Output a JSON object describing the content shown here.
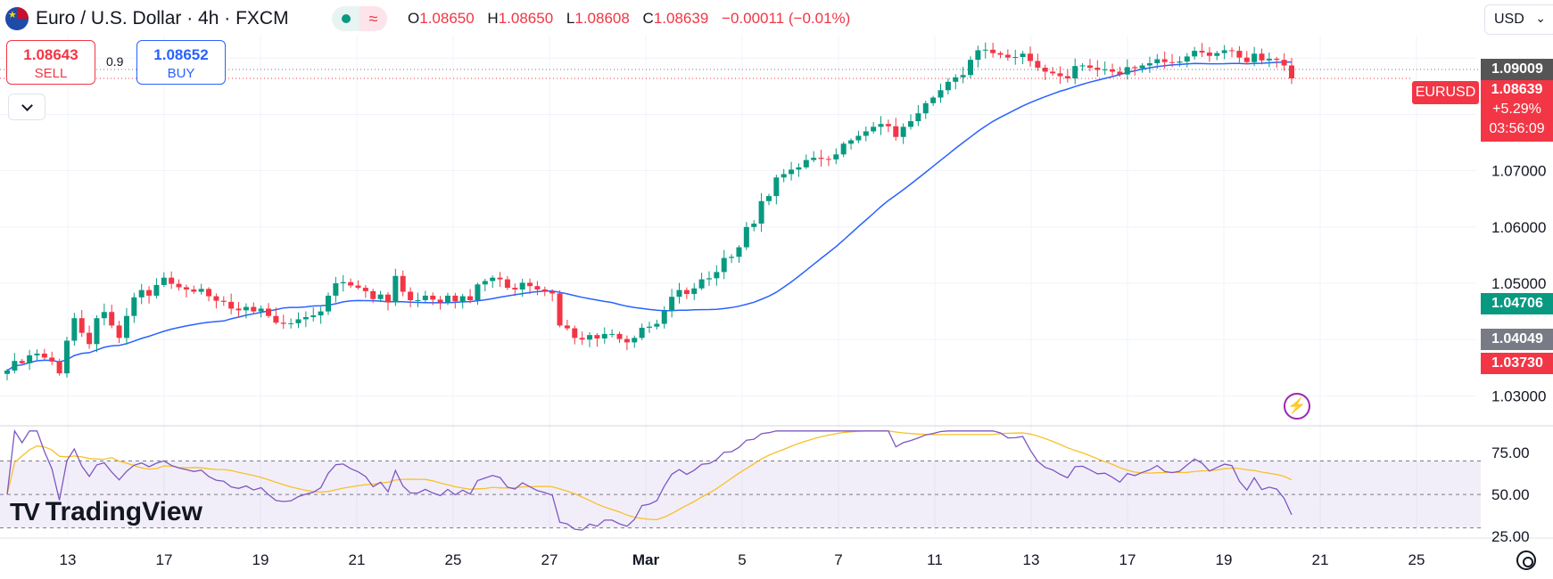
{
  "header": {
    "title": "Euro / U.S. Dollar · 4h · FXCM",
    "ohlc": [
      {
        "key": "O",
        "value": "1.08650"
      },
      {
        "key": "H",
        "value": "1.08650"
      },
      {
        "key": "L",
        "value": "1.08608"
      },
      {
        "key": "C",
        "value": "1.08639"
      },
      {
        "key": "",
        "value": "−0.00011 (−0.01%)"
      }
    ],
    "currency": "USD",
    "currency_icon": "chevron-down-icon"
  },
  "trade": {
    "sell_price": "1.08643",
    "sell_label": "SELL",
    "buy_price": "1.08652",
    "buy_label": "BUY",
    "spread": "0.9"
  },
  "price_scale": {
    "ticks": [
      "1.07000",
      "1.06000",
      "1.05000",
      "1.03000"
    ],
    "labels": [
      {
        "text": "1.09009",
        "color": "#555555"
      },
      {
        "text": "1.04706",
        "color": "#089981"
      },
      {
        "text": "1.04049",
        "color": "#787b86"
      },
      {
        "text": "1.03730",
        "color": "#f23645"
      }
    ],
    "symbol_tag": "EURUSD",
    "last_price": "1.08639",
    "change_pct": "+5.29%",
    "countdown": "03:56:09"
  },
  "rsi_scale": {
    "ticks": [
      "75.00",
      "50.00",
      "25.00"
    ]
  },
  "time_axis": {
    "ticks": [
      "13",
      "17",
      "19",
      "21",
      "25",
      "27",
      "Mar",
      "5",
      "7",
      "11",
      "13",
      "17",
      "19",
      "21",
      "25"
    ]
  },
  "branding": {
    "logo_text": "TradingView",
    "logo_mark": "17"
  },
  "colors": {
    "up": "#089981",
    "down": "#f23645",
    "ma": "#2962ff",
    "rsi": "#7e57c2",
    "rsi_ma": "#f7c02a"
  },
  "chart_data": {
    "type": "candlestick",
    "symbol": "EURUSD",
    "timeframe": "4h",
    "ylim": [
      1.025,
      1.094
    ],
    "close": [
      1.0345,
      1.0362,
      1.0358,
      1.0372,
      1.0375,
      1.0368,
      1.0361,
      1.034,
      1.0398,
      1.0438,
      1.0412,
      1.0392,
      1.0438,
      1.0449,
      1.0425,
      1.0403,
      1.0442,
      1.0475,
      1.0488,
      1.0478,
      1.0497,
      1.051,
      1.0499,
      1.0493,
      1.0489,
      1.0485,
      1.049,
      1.0477,
      1.0469,
      1.0467,
      1.0455,
      1.0452,
      1.0458,
      1.045,
      1.0455,
      1.0442,
      1.043,
      1.0428,
      1.0429,
      1.0436,
      1.044,
      1.0443,
      1.045,
      1.0478,
      1.05,
      1.0502,
      1.0496,
      1.0492,
      1.0486,
      1.0472,
      1.048,
      1.0466,
      1.0513,
      1.0485,
      1.047,
      1.047,
      1.0478,
      1.0471,
      1.0466,
      1.0478,
      1.0468,
      1.0477,
      1.047,
      1.0498,
      1.0504,
      1.051,
      1.0507,
      1.0492,
      1.0489,
      1.0501,
      1.0495,
      1.0489,
      1.0486,
      1.0482,
      1.0425,
      1.042,
      1.0403,
      1.04,
      1.0408,
      1.0402,
      1.041,
      1.041,
      1.0401,
      1.0395,
      1.0403,
      1.0421,
      1.0423,
      1.0428,
      1.0451,
      1.0476,
      1.0488,
      1.0481,
      1.0491,
      1.0507,
      1.0509,
      1.052,
      1.0545,
      1.0547,
      1.0564,
      1.06,
      1.0606,
      1.0646,
      1.0655,
      1.0688,
      1.0694,
      1.0702,
      1.0706,
      1.0719,
      1.0723,
      1.0721,
      1.072,
      1.0729,
      1.0748,
      1.0754,
      1.0762,
      1.077,
      1.0778,
      1.0783,
      1.0779,
      1.076,
      1.0778,
      1.0788,
      1.0802,
      1.082,
      1.083,
      1.0843,
      1.0858,
      1.0866,
      1.087,
      1.0897,
      1.0914,
      1.0915,
      1.0909,
      1.0906,
      1.0901,
      1.0902,
      1.0908,
      1.0895,
      1.0883,
      1.0876,
      1.0873,
      1.0868,
      1.0864,
      1.0886,
      1.0887,
      1.0883,
      1.0879,
      1.088,
      1.0876,
      1.0871,
      1.0884,
      1.0882,
      1.0887,
      1.0891,
      1.0898,
      1.0893,
      1.0892,
      1.0894,
      1.0903,
      1.0913,
      1.091,
      1.0904,
      1.0909,
      1.0914,
      1.0913,
      1.0901,
      1.0893,
      1.0908,
      1.0896,
      1.0899,
      1.0897,
      1.0887,
      1.0864
    ],
    "ma_series": "SMA of close",
    "rsi_ylim": [
      25,
      90
    ],
    "rsi_ticks": [
      75,
      50,
      25
    ]
  }
}
